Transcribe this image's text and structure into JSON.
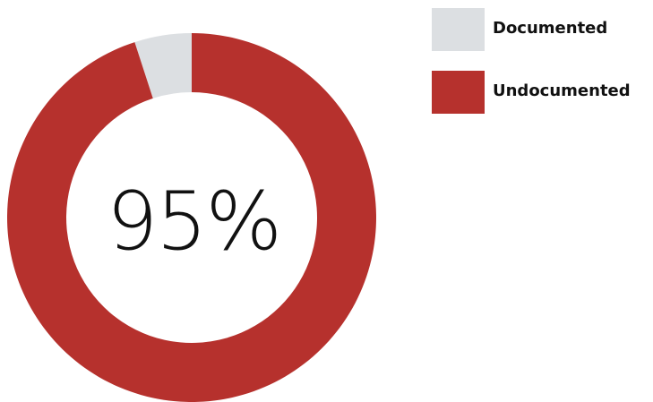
{
  "chart_data": {
    "type": "pie",
    "title": "",
    "center_label": "95%",
    "legend_position": "top-right",
    "slices": [
      {
        "name": "Documented",
        "value": 5,
        "color": "#dcdfe2"
      },
      {
        "name": "Undocumented",
        "value": 95,
        "color": "#b6312d"
      }
    ]
  }
}
